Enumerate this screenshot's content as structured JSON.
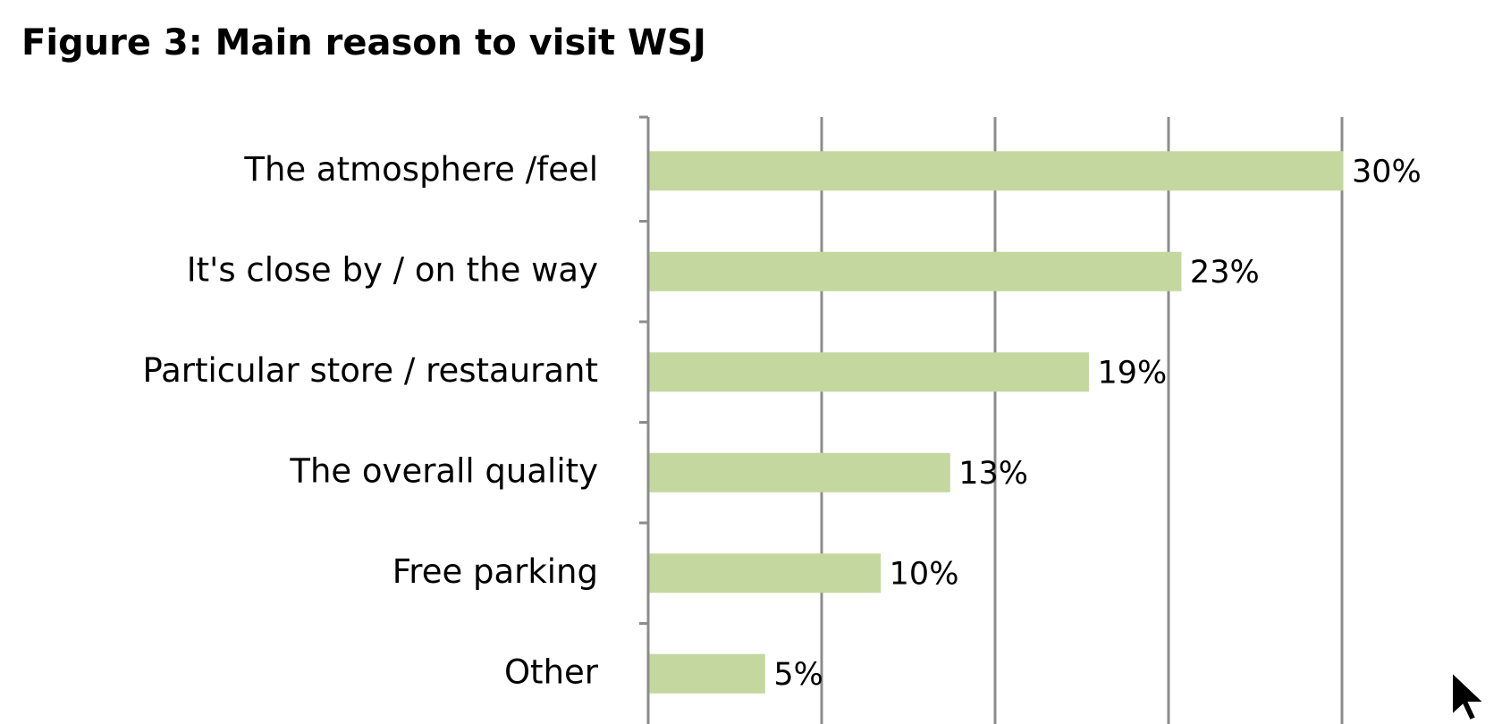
{
  "chart_data": {
    "type": "barh",
    "title": "Figure 3: Main reason to visit WSJ",
    "categories": [
      "The atmosphere /feel",
      "It's close by / on the way",
      "Particular store / restaurant",
      "The overall quality",
      "Free parking",
      "Other"
    ],
    "values": [
      30,
      23,
      19,
      13,
      10,
      5
    ],
    "value_labels": [
      "30%",
      "23%",
      "19%",
      "13%",
      "10%",
      "5%"
    ],
    "color": "#c4d79f",
    "xlim": [
      0,
      30
    ],
    "xticks": [
      0,
      7.5,
      15,
      22.5,
      30
    ],
    "grid": true
  }
}
